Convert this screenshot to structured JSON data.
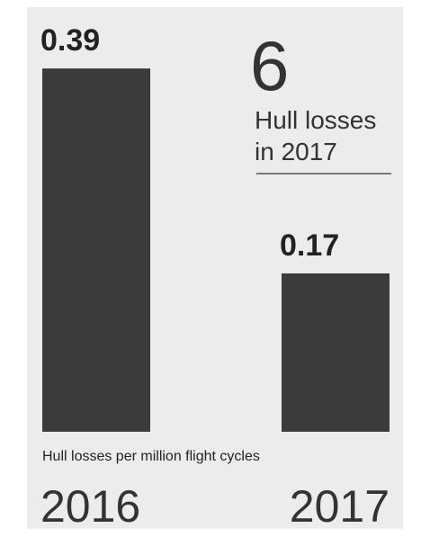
{
  "chart_data": {
    "type": "bar",
    "categories": [
      "2016",
      "2017"
    ],
    "values": [
      0.39,
      0.17
    ],
    "color": "#3b3b3b",
    "ylim": [
      0,
      0.45
    ],
    "x_label": "Hull losses per million flight cycles",
    "annotation": {
      "number": 6,
      "lines": [
        "Hull losses",
        "in 2017"
      ]
    }
  }
}
